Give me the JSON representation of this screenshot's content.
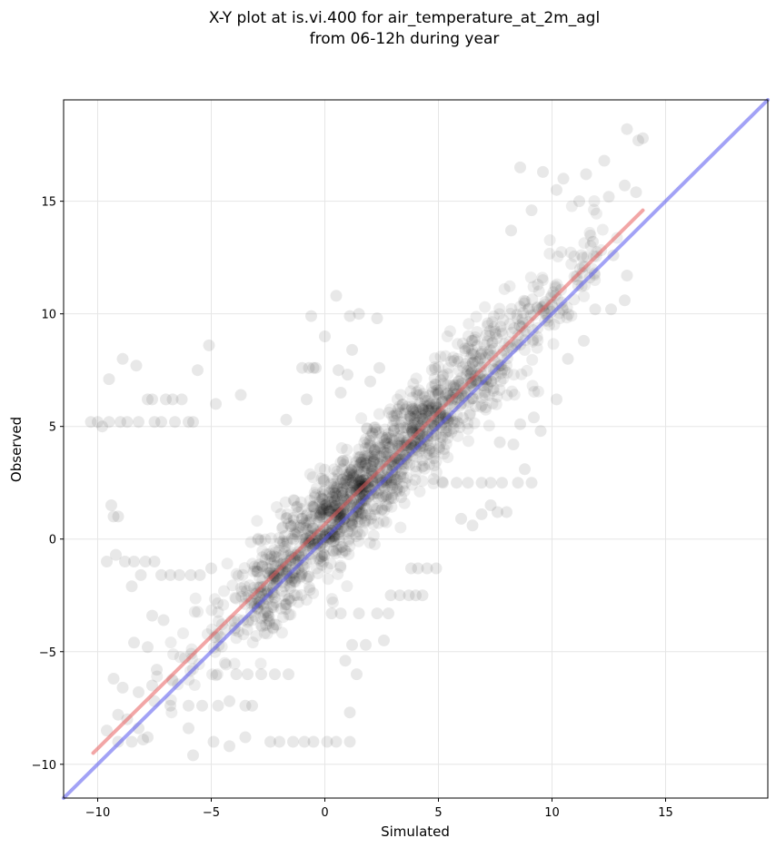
{
  "chart_data": {
    "type": "scatter",
    "title_line1": "X-Y plot at is.vi.400 for air_temperature_at_2m_agl",
    "title_line2": "from 06-12h during year",
    "xlabel": "Simulated",
    "ylabel": "Observed",
    "xlim": [
      -11.5,
      19.5
    ],
    "ylim": [
      -11.5,
      19.5
    ],
    "xticks": [
      -10,
      -5,
      0,
      5,
      10,
      15
    ],
    "yticks": [
      -10,
      -5,
      0,
      5,
      10,
      15
    ],
    "xtick_labels": [
      "−10",
      "−5",
      "0",
      "5",
      "10",
      "15"
    ],
    "ytick_labels": [
      "−10",
      "−5",
      "0",
      "5",
      "10",
      "15"
    ],
    "grid": true,
    "series": [
      {
        "kind": "scatter",
        "color": "#000000",
        "points": [
          [
            -10.3,
            5.2
          ],
          [
            -10.0,
            5.2
          ],
          [
            -9.8,
            5.0
          ],
          [
            -9.5,
            5.2
          ],
          [
            -9.0,
            5.2
          ],
          [
            -8.7,
            5.2
          ],
          [
            -8.2,
            5.2
          ],
          [
            -7.5,
            5.2
          ],
          [
            -7.2,
            5.2
          ],
          [
            -6.6,
            5.2
          ],
          [
            -6.0,
            5.2
          ],
          [
            -5.8,
            5.2
          ],
          [
            -7.8,
            6.2
          ],
          [
            -7.6,
            6.2
          ],
          [
            -7.0,
            6.2
          ],
          [
            -6.7,
            6.2
          ],
          [
            -6.3,
            6.2
          ],
          [
            -9.5,
            7.1
          ],
          [
            -8.9,
            8.0
          ],
          [
            -8.3,
            7.7
          ],
          [
            -5.6,
            7.5
          ],
          [
            -5.1,
            8.6
          ],
          [
            -4.8,
            6.0
          ],
          [
            -3.7,
            6.4
          ],
          [
            -9.4,
            1.5
          ],
          [
            -9.3,
            1.0
          ],
          [
            -9.1,
            1.0
          ],
          [
            -9.6,
            -1.0
          ],
          [
            -9.2,
            -0.7
          ],
          [
            -8.8,
            -1.0
          ],
          [
            -8.4,
            -1.0
          ],
          [
            -7.9,
            -1.0
          ],
          [
            -7.5,
            -1.0
          ],
          [
            -7.2,
            -1.6
          ],
          [
            -6.8,
            -1.6
          ],
          [
            -6.4,
            -1.6
          ],
          [
            -5.9,
            -1.6
          ],
          [
            -5.5,
            -1.6
          ],
          [
            -5.0,
            -1.3
          ],
          [
            -8.1,
            -1.6
          ],
          [
            -8.5,
            -2.1
          ],
          [
            -7.6,
            -3.4
          ],
          [
            -7.1,
            -3.6
          ],
          [
            -7.8,
            -4.8
          ],
          [
            -8.4,
            -4.6
          ],
          [
            -9.3,
            -6.2
          ],
          [
            -8.9,
            -6.6
          ],
          [
            -8.2,
            -6.8
          ],
          [
            -7.6,
            -6.5
          ],
          [
            -7.4,
            -5.8
          ],
          [
            -9.1,
            -7.8
          ],
          [
            -8.7,
            -8.0
          ],
          [
            -8.2,
            -8.4
          ],
          [
            -7.8,
            -8.8
          ],
          [
            -9.6,
            -8.5
          ],
          [
            -9.1,
            -9.0
          ],
          [
            -8.5,
            -9.0
          ],
          [
            -8.0,
            -8.9
          ],
          [
            -6.0,
            -8.4
          ],
          [
            -5.8,
            -9.6
          ],
          [
            -4.9,
            -9.0
          ],
          [
            -4.2,
            -9.2
          ],
          [
            -3.5,
            -8.8
          ],
          [
            -2.4,
            -9.0
          ],
          [
            -2.0,
            -9.0
          ],
          [
            -1.4,
            -9.0
          ],
          [
            -0.9,
            -9.0
          ],
          [
            -0.5,
            -9.0
          ],
          [
            0.1,
            -9.0
          ],
          [
            0.5,
            -9.0
          ],
          [
            1.1,
            -9.0
          ],
          [
            -7.5,
            -7.2
          ],
          [
            -6.8,
            -7.4
          ],
          [
            -6.0,
            -7.4
          ],
          [
            -5.4,
            -7.4
          ],
          [
            -4.7,
            -7.4
          ],
          [
            -4.2,
            -7.2
          ],
          [
            -3.5,
            -7.4
          ],
          [
            -3.2,
            -7.4
          ],
          [
            -3.9,
            -6.0
          ],
          [
            -3.4,
            -6.0
          ],
          [
            -2.8,
            -6.0
          ],
          [
            -2.2,
            -6.0
          ],
          [
            -1.6,
            -6.0
          ],
          [
            0.9,
            -5.4
          ],
          [
            1.4,
            -6.0
          ],
          [
            1.2,
            -4.7
          ],
          [
            1.8,
            -4.7
          ],
          [
            2.6,
            -4.5
          ],
          [
            1.1,
            -7.7
          ],
          [
            0.3,
            -3.3
          ],
          [
            0.7,
            -3.3
          ],
          [
            1.5,
            -3.3
          ],
          [
            2.3,
            -3.3
          ],
          [
            2.8,
            -3.3
          ],
          [
            2.9,
            -2.5
          ],
          [
            3.3,
            -2.5
          ],
          [
            3.7,
            -2.5
          ],
          [
            4.0,
            -2.5
          ],
          [
            4.3,
            -2.5
          ],
          [
            3.8,
            -1.3
          ],
          [
            4.1,
            -1.3
          ],
          [
            4.5,
            -1.3
          ],
          [
            4.9,
            -1.3
          ],
          [
            -1.7,
            5.3
          ],
          [
            -1.0,
            7.6
          ],
          [
            -0.7,
            7.6
          ],
          [
            -0.5,
            7.6
          ],
          [
            -0.4,
            7.6
          ],
          [
            -0.6,
            9.9
          ],
          [
            0.0,
            9.0
          ],
          [
            0.5,
            10.8
          ],
          [
            1.1,
            9.9
          ],
          [
            1.5,
            10.0
          ],
          [
            2.3,
            9.8
          ],
          [
            1.2,
            8.4
          ],
          [
            0.6,
            7.5
          ],
          [
            1.0,
            7.3
          ],
          [
            2.0,
            7.0
          ],
          [
            2.4,
            7.6
          ],
          [
            0.7,
            6.5
          ],
          [
            -0.8,
            6.2
          ],
          [
            6.0,
            0.9
          ],
          [
            6.5,
            0.6
          ],
          [
            6.9,
            1.1
          ],
          [
            7.3,
            1.5
          ],
          [
            7.6,
            1.2
          ],
          [
            8.0,
            1.2
          ],
          [
            5.2,
            2.5
          ],
          [
            5.8,
            2.5
          ],
          [
            6.3,
            2.5
          ],
          [
            6.9,
            2.5
          ],
          [
            7.3,
            2.5
          ],
          [
            7.8,
            2.5
          ],
          [
            8.5,
            2.5
          ],
          [
            9.1,
            2.5
          ],
          [
            8.8,
            3.1
          ],
          [
            9.5,
            4.8
          ],
          [
            8.3,
            4.2
          ],
          [
            7.7,
            4.3
          ],
          [
            8.6,
            5.1
          ],
          [
            9.2,
            5.4
          ],
          [
            10.2,
            6.2
          ],
          [
            10.7,
            8.0
          ],
          [
            11.4,
            8.8
          ],
          [
            11.9,
            10.2
          ],
          [
            12.6,
            10.2
          ],
          [
            13.2,
            10.6
          ],
          [
            13.3,
            11.7
          ],
          [
            13.7,
            15.4
          ],
          [
            13.8,
            17.7
          ],
          [
            14.0,
            17.8
          ],
          [
            13.3,
            18.2
          ],
          [
            12.3,
            16.8
          ],
          [
            11.5,
            16.2
          ],
          [
            10.5,
            16.0
          ],
          [
            9.6,
            16.3
          ],
          [
            8.6,
            16.5
          ],
          [
            10.2,
            15.5
          ],
          [
            11.2,
            15.0
          ],
          [
            12.5,
            15.2
          ],
          [
            13.2,
            15.7
          ],
          [
            11.8,
            13.2
          ],
          [
            12.7,
            12.6
          ],
          [
            9.1,
            14.6
          ],
          [
            8.2,
            13.7
          ]
        ]
      },
      {
        "kind": "line",
        "name": "",
        "color": "#e85c5c",
        "points": [
          [
            -10.2,
            -9.5
          ],
          [
            14.0,
            14.6
          ]
        ]
      },
      {
        "kind": "line",
        "name": "",
        "color": "#5555ee",
        "points": [
          [
            -11.5,
            -11.5
          ],
          [
            19.5,
            19.5
          ]
        ]
      }
    ]
  }
}
